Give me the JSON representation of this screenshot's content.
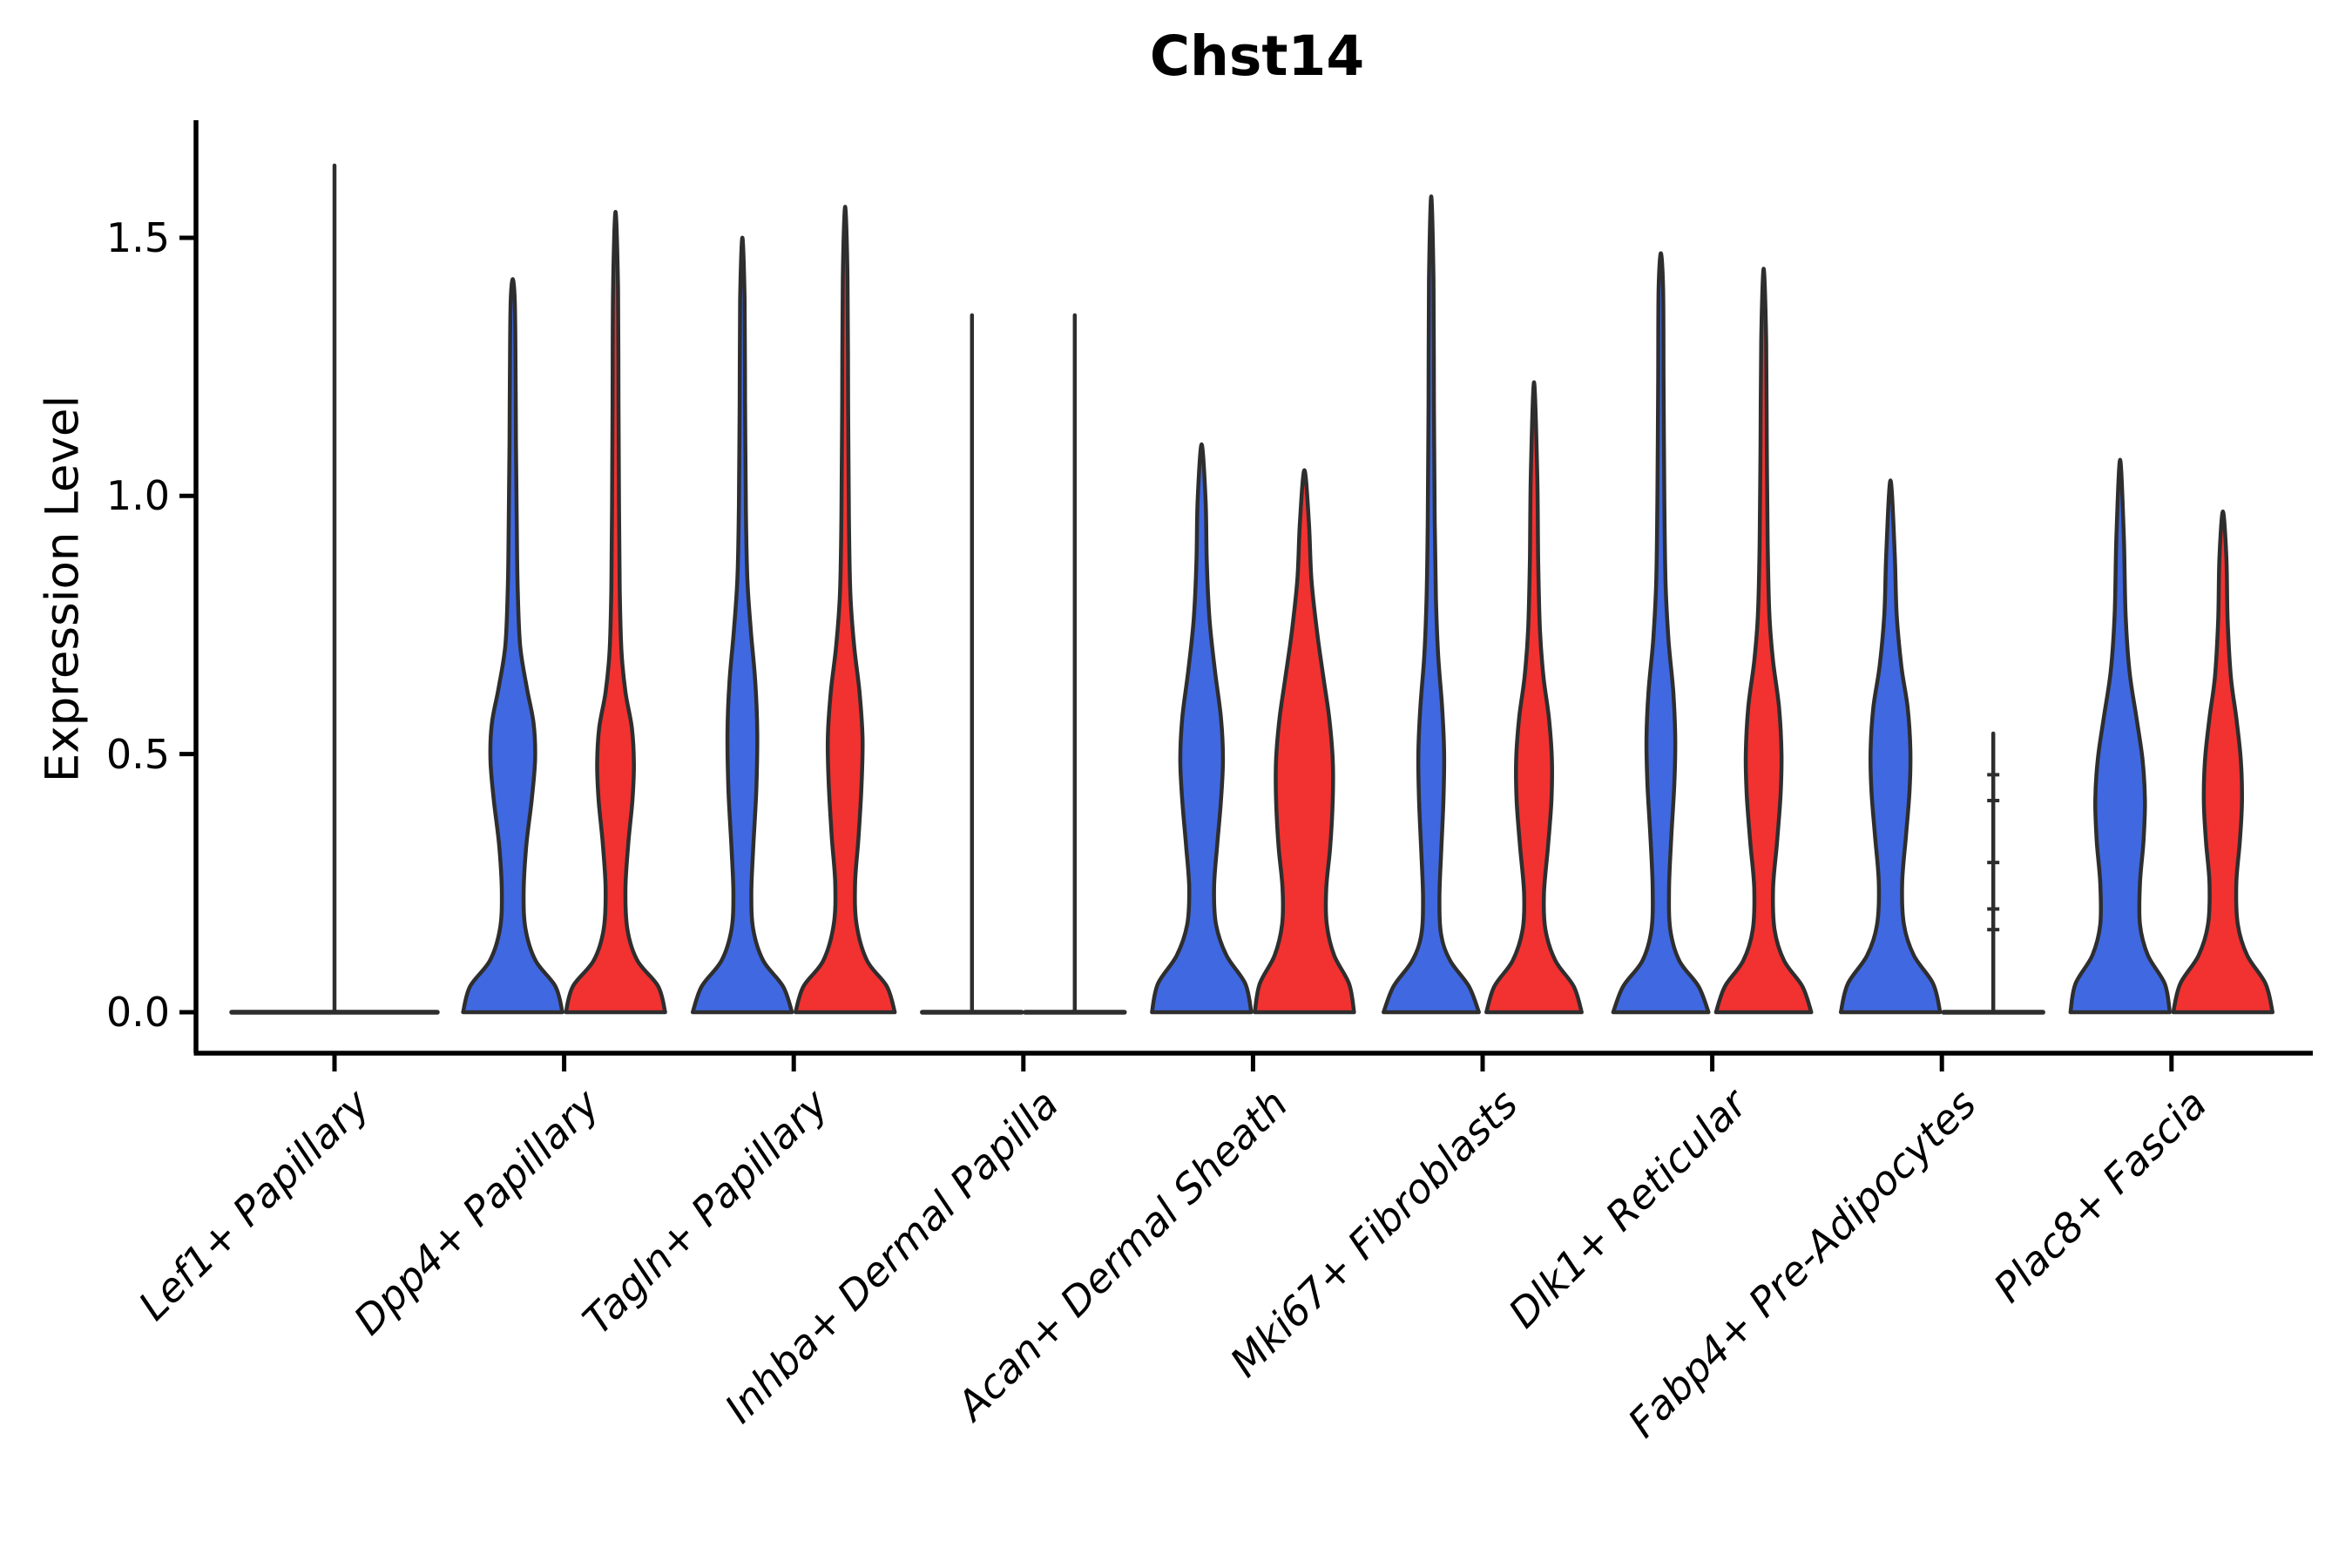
{
  "title": "Chst14",
  "y_axis": {
    "label": "Expression Level",
    "ticks": [
      "0.0",
      "0.5",
      "1.0",
      "1.5"
    ]
  },
  "colors": {
    "group_blue": "#4068E1",
    "group_red": "#F23131",
    "violin_outline": "#2E2E2E",
    "axis": "#000000",
    "background": "#FFFFFF"
  },
  "chart_data": {
    "type": "violin",
    "title": "Chst14",
    "ylabel": "Expression Level",
    "xlabel": "",
    "ylim": [
      0,
      1.72
    ],
    "ytick_values": [
      0.0,
      0.5,
      1.0,
      1.5
    ],
    "grid": false,
    "legend_position": "none",
    "groups_per_category": [
      "blue",
      "red"
    ],
    "categories": [
      "Lef1+ Papillary",
      "Dpp4+ Papillary",
      "Tagln+ Papillary",
      "Inhba+ Dermal Papilla",
      "Acan+ Dermal Sheath",
      "Mki67+ Fibroblasts",
      "Dlk1+ Reticular",
      "Fabp4+ Pre-Adipocytes",
      "Plac8+ Fascia"
    ],
    "series": [
      {
        "category": "Lef1+ Papillary",
        "violins": [
          {
            "group": "single",
            "color": "none",
            "kind": "spike",
            "slot": "center",
            "max": 1.64,
            "points": []
          }
        ]
      },
      {
        "category": "Dpp4+ Papillary",
        "violins": [
          {
            "group": "blue",
            "color": "blue",
            "kind": "kde",
            "slot": "left",
            "max": 1.42,
            "profile": [
              [
                0,
                1
              ],
              [
                0.05,
                0.86
              ],
              [
                0.1,
                0.46
              ],
              [
                0.16,
                0.26
              ],
              [
                0.23,
                0.22
              ],
              [
                0.32,
                0.27
              ],
              [
                0.41,
                0.38
              ],
              [
                0.49,
                0.45
              ],
              [
                0.56,
                0.42
              ],
              [
                0.63,
                0.28
              ],
              [
                0.71,
                0.15
              ],
              [
                0.82,
                0.1
              ],
              [
                0.95,
                0.08
              ],
              [
                1.1,
                0.065
              ],
              [
                1.28,
                0.055
              ],
              [
                1.38,
                0.04
              ],
              [
                1.42,
                0
              ]
            ]
          },
          {
            "group": "red",
            "color": "red",
            "kind": "kde",
            "slot": "right",
            "max": 1.55,
            "profile": [
              [
                0,
                1
              ],
              [
                0.05,
                0.86
              ],
              [
                0.1,
                0.44
              ],
              [
                0.16,
                0.24
              ],
              [
                0.24,
                0.2
              ],
              [
                0.33,
                0.26
              ],
              [
                0.41,
                0.34
              ],
              [
                0.48,
                0.37
              ],
              [
                0.55,
                0.33
              ],
              [
                0.62,
                0.2
              ],
              [
                0.7,
                0.12
              ],
              [
                0.82,
                0.085
              ],
              [
                0.98,
                0.07
              ],
              [
                1.18,
                0.06
              ],
              [
                1.4,
                0.05
              ],
              [
                1.55,
                0
              ]
            ]
          }
        ]
      },
      {
        "category": "Tagln+ Papillary",
        "violins": [
          {
            "group": "blue",
            "color": "blue",
            "kind": "kde",
            "slot": "left",
            "max": 1.5,
            "profile": [
              [
                0,
                1
              ],
              [
                0.05,
                0.82
              ],
              [
                0.1,
                0.42
              ],
              [
                0.16,
                0.22
              ],
              [
                0.23,
                0.18
              ],
              [
                0.32,
                0.22
              ],
              [
                0.43,
                0.28
              ],
              [
                0.54,
                0.3
              ],
              [
                0.64,
                0.26
              ],
              [
                0.74,
                0.17
              ],
              [
                0.84,
                0.1
              ],
              [
                0.98,
                0.07
              ],
              [
                1.18,
                0.055
              ],
              [
                1.38,
                0.045
              ],
              [
                1.5,
                0
              ]
            ]
          },
          {
            "group": "red",
            "color": "red",
            "kind": "kde",
            "slot": "right",
            "max": 1.56,
            "profile": [
              [
                0,
                1
              ],
              [
                0.05,
                0.84
              ],
              [
                0.1,
                0.44
              ],
              [
                0.17,
                0.23
              ],
              [
                0.25,
                0.2
              ],
              [
                0.34,
                0.27
              ],
              [
                0.44,
                0.33
              ],
              [
                0.53,
                0.35
              ],
              [
                0.62,
                0.29
              ],
              [
                0.71,
                0.18
              ],
              [
                0.81,
                0.105
              ],
              [
                0.96,
                0.075
              ],
              [
                1.18,
                0.06
              ],
              [
                1.42,
                0.048
              ],
              [
                1.56,
                0
              ]
            ]
          }
        ]
      },
      {
        "category": "Inhba+ Dermal Papilla",
        "violins": [
          {
            "group": "blue",
            "color": "none",
            "kind": "spike",
            "slot": "left",
            "max": 1.35,
            "points": []
          },
          {
            "group": "red",
            "color": "none",
            "kind": "spike",
            "slot": "right",
            "max": 1.35,
            "points": []
          }
        ]
      },
      {
        "category": "Acan+ Dermal Sheath",
        "violins": [
          {
            "group": "blue",
            "color": "blue",
            "kind": "kde",
            "slot": "left",
            "max": 1.1,
            "profile": [
              [
                0,
                1
              ],
              [
                0.055,
                0.88
              ],
              [
                0.11,
                0.5
              ],
              [
                0.17,
                0.29
              ],
              [
                0.24,
                0.25
              ],
              [
                0.32,
                0.31
              ],
              [
                0.41,
                0.39
              ],
              [
                0.49,
                0.43
              ],
              [
                0.57,
                0.39
              ],
              [
                0.66,
                0.27
              ],
              [
                0.76,
                0.16
              ],
              [
                0.87,
                0.105
              ],
              [
                0.99,
                0.08
              ],
              [
                1.1,
                0
              ]
            ]
          },
          {
            "group": "red",
            "color": "red",
            "kind": "kde",
            "slot": "right",
            "max": 1.05,
            "profile": [
              [
                0,
                1
              ],
              [
                0.055,
                0.9
              ],
              [
                0.11,
                0.6
              ],
              [
                0.17,
                0.45
              ],
              [
                0.24,
                0.44
              ],
              [
                0.32,
                0.52
              ],
              [
                0.41,
                0.57
              ],
              [
                0.49,
                0.57
              ],
              [
                0.57,
                0.5
              ],
              [
                0.65,
                0.38
              ],
              [
                0.74,
                0.25
              ],
              [
                0.84,
                0.14
              ],
              [
                0.95,
                0.09
              ],
              [
                1.05,
                0
              ]
            ]
          }
        ]
      },
      {
        "category": "Mki67+ Fibroblasts",
        "violins": [
          {
            "group": "blue",
            "color": "blue",
            "kind": "kde",
            "slot": "left",
            "max": 1.58,
            "profile": [
              [
                0,
                0.96
              ],
              [
                0.05,
                0.76
              ],
              [
                0.1,
                0.38
              ],
              [
                0.15,
                0.2
              ],
              [
                0.22,
                0.165
              ],
              [
                0.31,
                0.2
              ],
              [
                0.41,
                0.245
              ],
              [
                0.5,
                0.26
              ],
              [
                0.59,
                0.22
              ],
              [
                0.69,
                0.14
              ],
              [
                0.8,
                0.095
              ],
              [
                0.95,
                0.07
              ],
              [
                1.18,
                0.055
              ],
              [
                1.42,
                0.045
              ],
              [
                1.58,
                0
              ]
            ]
          },
          {
            "group": "red",
            "color": "red",
            "kind": "kde",
            "slot": "right",
            "max": 1.22,
            "profile": [
              [
                0,
                0.96
              ],
              [
                0.05,
                0.8
              ],
              [
                0.1,
                0.43
              ],
              [
                0.16,
                0.23
              ],
              [
                0.23,
                0.2
              ],
              [
                0.32,
                0.28
              ],
              [
                0.41,
                0.35
              ],
              [
                0.49,
                0.36
              ],
              [
                0.57,
                0.3
              ],
              [
                0.65,
                0.19
              ],
              [
                0.74,
                0.12
              ],
              [
                0.87,
                0.085
              ],
              [
                1.04,
                0.065
              ],
              [
                1.22,
                0
              ]
            ]
          }
        ]
      },
      {
        "category": "Dlk1+ Reticular",
        "violins": [
          {
            "group": "blue",
            "color": "blue",
            "kind": "kde",
            "slot": "left",
            "max": 1.47,
            "profile": [
              [
                0,
                0.96
              ],
              [
                0.05,
                0.76
              ],
              [
                0.1,
                0.37
              ],
              [
                0.16,
                0.19
              ],
              [
                0.24,
                0.165
              ],
              [
                0.34,
                0.21
              ],
              [
                0.44,
                0.27
              ],
              [
                0.53,
                0.29
              ],
              [
                0.62,
                0.25
              ],
              [
                0.72,
                0.155
              ],
              [
                0.83,
                0.095
              ],
              [
                0.99,
                0.07
              ],
              [
                1.22,
                0.055
              ],
              [
                1.4,
                0.045
              ],
              [
                1.47,
                0
              ]
            ]
          },
          {
            "group": "red",
            "color": "red",
            "kind": "kde",
            "slot": "right",
            "max": 1.44,
            "profile": [
              [
                0,
                0.96
              ],
              [
                0.05,
                0.78
              ],
              [
                0.1,
                0.41
              ],
              [
                0.16,
                0.22
              ],
              [
                0.24,
                0.19
              ],
              [
                0.33,
                0.27
              ],
              [
                0.42,
                0.34
              ],
              [
                0.5,
                0.36
              ],
              [
                0.59,
                0.31
              ],
              [
                0.68,
                0.19
              ],
              [
                0.77,
                0.115
              ],
              [
                0.91,
                0.08
              ],
              [
                1.1,
                0.063
              ],
              [
                1.3,
                0.05
              ],
              [
                1.44,
                0
              ]
            ]
          }
        ]
      },
      {
        "category": "Fabp4+ Pre-Adipocytes",
        "violins": [
          {
            "group": "blue",
            "color": "blue",
            "kind": "kde",
            "slot": "left",
            "max": 1.03,
            "profile": [
              [
                0,
                1
              ],
              [
                0.055,
                0.86
              ],
              [
                0.11,
                0.47
              ],
              [
                0.17,
                0.27
              ],
              [
                0.25,
                0.235
              ],
              [
                0.34,
                0.31
              ],
              [
                0.43,
                0.385
              ],
              [
                0.51,
                0.4
              ],
              [
                0.59,
                0.345
              ],
              [
                0.67,
                0.22
              ],
              [
                0.77,
                0.125
              ],
              [
                0.89,
                0.085
              ],
              [
                1.03,
                0
              ]
            ]
          },
          {
            "group": "red",
            "color": "none",
            "kind": "spike",
            "slot": "right",
            "max": 0.54,
            "points": [
              0.46,
              0.41,
              0.29,
              0.2,
              0.16
            ]
          }
        ]
      },
      {
        "category": "Plac8+ Fascia",
        "violins": [
          {
            "group": "blue",
            "color": "blue",
            "kind": "kde",
            "slot": "left",
            "max": 1.07,
            "profile": [
              [
                0,
                1
              ],
              [
                0.055,
                0.9
              ],
              [
                0.11,
                0.56
              ],
              [
                0.17,
                0.4
              ],
              [
                0.25,
                0.4
              ],
              [
                0.33,
                0.47
              ],
              [
                0.41,
                0.5
              ],
              [
                0.49,
                0.45
              ],
              [
                0.57,
                0.33
              ],
              [
                0.66,
                0.19
              ],
              [
                0.77,
                0.11
              ],
              [
                0.92,
                0.075
              ],
              [
                1.07,
                0
              ]
            ]
          },
          {
            "group": "red",
            "color": "red",
            "kind": "kde",
            "slot": "right",
            "max": 0.97,
            "profile": [
              [
                0,
                1
              ],
              [
                0.055,
                0.86
              ],
              [
                0.11,
                0.49
              ],
              [
                0.17,
                0.3
              ],
              [
                0.25,
                0.27
              ],
              [
                0.33,
                0.34
              ],
              [
                0.41,
                0.385
              ],
              [
                0.49,
                0.36
              ],
              [
                0.57,
                0.27
              ],
              [
                0.65,
                0.16
              ],
              [
                0.76,
                0.095
              ],
              [
                0.88,
                0.07
              ],
              [
                0.97,
                0
              ]
            ]
          }
        ]
      }
    ]
  }
}
